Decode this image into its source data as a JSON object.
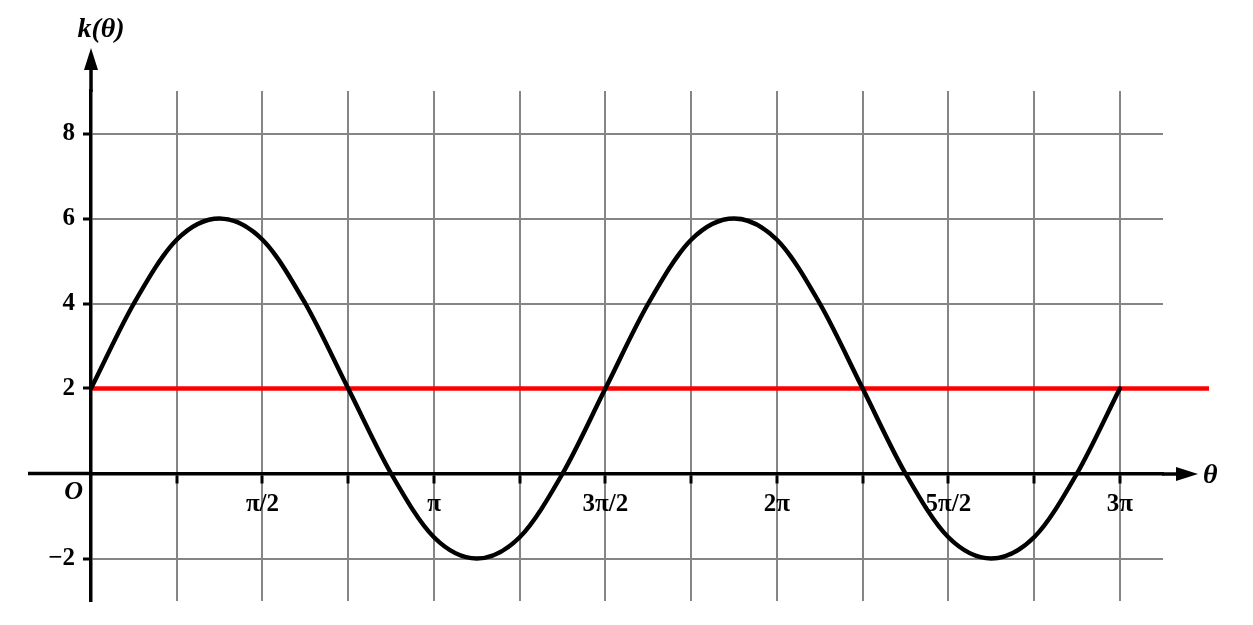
{
  "chart_data": {
    "type": "line",
    "xlabel": "θ",
    "ylabel": "k(θ)",
    "x": [
      0,
      0.393,
      0.785,
      1.178,
      1.571,
      1.963,
      2.356,
      2.749,
      3.142,
      3.534,
      3.927,
      4.32,
      4.712,
      5.105,
      5.498,
      5.89,
      6.283,
      6.676,
      7.069,
      7.461,
      7.854,
      8.247,
      8.639,
      9.032,
      9.425
    ],
    "series": [
      {
        "color": "#000000",
        "values": [
          2,
          4,
          5.5,
          6,
          5.5,
          4,
          2,
          0,
          -1.5,
          -2,
          -1.5,
          0,
          2,
          4,
          5.5,
          6,
          5.5,
          4,
          2,
          0,
          -1.5,
          -2,
          -1.5,
          0,
          2
        ]
      }
    ],
    "xlim": [
      0,
      9.82
    ],
    "ylim": [
      -3,
      9
    ],
    "xticks": [
      {
        "value": 0.785,
        "label": null
      },
      {
        "value": 1.571,
        "label": "π/2"
      },
      {
        "value": 2.356,
        "label": null
      },
      {
        "value": 3.142,
        "label": "π"
      },
      {
        "value": 3.927,
        "label": null
      },
      {
        "value": 4.712,
        "label": "3π/2"
      },
      {
        "value": 5.498,
        "label": null
      },
      {
        "value": 6.283,
        "label": "2π"
      },
      {
        "value": 7.069,
        "label": null
      },
      {
        "value": 7.854,
        "label": "5π/2"
      },
      {
        "value": 8.639,
        "label": null
      },
      {
        "value": 9.425,
        "label": "3π"
      }
    ],
    "yticks": [
      {
        "value": -2,
        "label": "−2"
      },
      2,
      4,
      6,
      8
    ],
    "grid": true,
    "marker": "none",
    "line_style": "solid",
    "ref_lines": [
      {
        "axis": "y",
        "value": 2,
        "color": "#ff0000"
      }
    ],
    "annotations": [
      "O"
    ]
  }
}
